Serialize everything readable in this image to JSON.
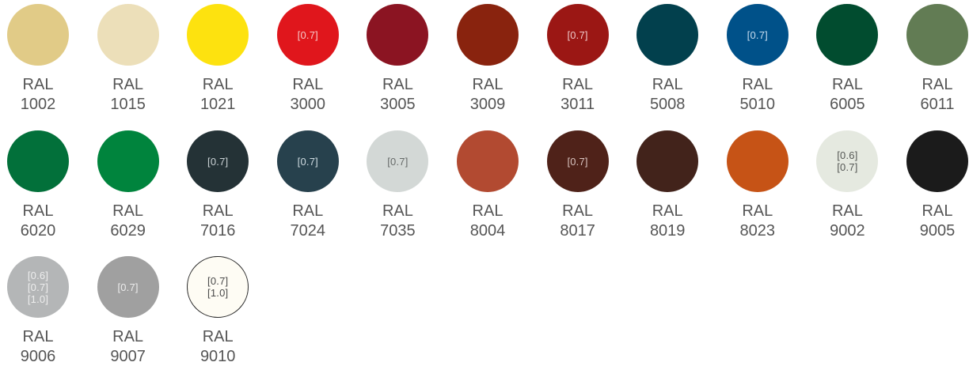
{
  "swatches": [
    {
      "prefix": "RAL",
      "code": "1002",
      "color": "#e1cb87",
      "text_color": "#ffffff",
      "thickness": []
    },
    {
      "prefix": "RAL",
      "code": "1015",
      "color": "#ecdfb9",
      "text_color": "#ffffff",
      "thickness": []
    },
    {
      "prefix": "RAL",
      "code": "1021",
      "color": "#fde20f",
      "text_color": "#ffffff",
      "thickness": []
    },
    {
      "prefix": "RAL",
      "code": "3000",
      "color": "#e0161c",
      "text_color": "#f6c9c9",
      "thickness": [
        "[0.7]"
      ]
    },
    {
      "prefix": "RAL",
      "code": "3005",
      "color": "#8b1422",
      "text_color": "#ffffff",
      "thickness": []
    },
    {
      "prefix": "RAL",
      "code": "3009",
      "color": "#89230e",
      "text_color": "#ffffff",
      "thickness": []
    },
    {
      "prefix": "RAL",
      "code": "3011",
      "color": "#9b1714",
      "text_color": "#eec9c8",
      "thickness": [
        "[0.7]"
      ]
    },
    {
      "prefix": "RAL",
      "code": "5008",
      "color": "#02404d",
      "text_color": "#ffffff",
      "thickness": []
    },
    {
      "prefix": "RAL",
      "code": "5010",
      "color": "#005189",
      "text_color": "#c7dcef",
      "thickness": [
        "[0.7]"
      ]
    },
    {
      "prefix": "RAL",
      "code": "6005",
      "color": "#014c2f",
      "text_color": "#ffffff",
      "thickness": []
    },
    {
      "prefix": "RAL",
      "code": "6011",
      "color": "#627c54",
      "text_color": "#ffffff",
      "thickness": []
    },
    {
      "prefix": "RAL",
      "code": "6020",
      "color": "#02703a",
      "text_color": "#ffffff",
      "thickness": []
    },
    {
      "prefix": "RAL",
      "code": "6029",
      "color": "#00843d",
      "text_color": "#ffffff",
      "thickness": []
    },
    {
      "prefix": "RAL",
      "code": "7016",
      "color": "#243236",
      "text_color": "#cbd3d6",
      "thickness": [
        "[0.7]"
      ]
    },
    {
      "prefix": "RAL",
      "code": "7024",
      "color": "#27414d",
      "text_color": "#cfdbe1",
      "thickness": [
        "[0.7]"
      ]
    },
    {
      "prefix": "RAL",
      "code": "7035",
      "color": "#d3d8d6",
      "text_color": "#666a69",
      "thickness": [
        "[0.7]"
      ]
    },
    {
      "prefix": "RAL",
      "code": "8004",
      "color": "#b24a31",
      "text_color": "#ffffff",
      "thickness": []
    },
    {
      "prefix": "RAL",
      "code": "8017",
      "color": "#4f2219",
      "text_color": "#d9c4c0",
      "thickness": [
        "[0.7]"
      ]
    },
    {
      "prefix": "RAL",
      "code": "8019",
      "color": "#42231b",
      "text_color": "#ffffff",
      "thickness": []
    },
    {
      "prefix": "RAL",
      "code": "8023",
      "color": "#c65316",
      "text_color": "#ffffff",
      "thickness": []
    },
    {
      "prefix": "RAL",
      "code": "9002",
      "color": "#e5e9e0",
      "text_color": "#555855",
      "thickness": [
        "[0.6]",
        "[0.7]"
      ]
    },
    {
      "prefix": "RAL",
      "code": "9005",
      "color": "#1b1b1b",
      "text_color": "#ffffff",
      "thickness": []
    },
    {
      "prefix": "RAL",
      "code": "9006",
      "color": "#b4b6b7",
      "text_color": "#eeeeee",
      "thickness": [
        "[0.6]",
        "[0.7]",
        "[1.0]"
      ]
    },
    {
      "prefix": "RAL",
      "code": "9007",
      "color": "#a0a0a0",
      "text_color": "#ececec",
      "thickness": [
        "[0.7]"
      ]
    },
    {
      "prefix": "RAL",
      "code": "9010",
      "color": "#fefcf4",
      "text_color": "#4a4a4a",
      "thickness": [
        "[0.7]",
        "[1.0]"
      ],
      "outlined": true
    }
  ]
}
